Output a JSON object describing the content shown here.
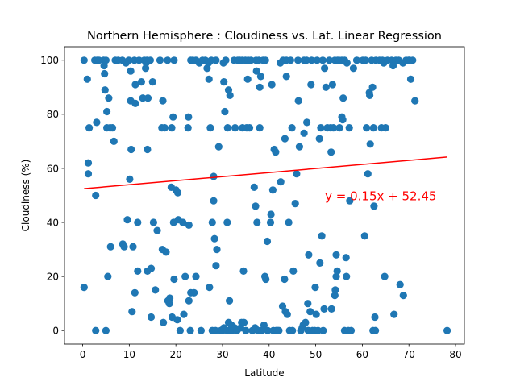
{
  "chart_data": {
    "type": "scatter",
    "title": "Northern Hemisphere : Cloudiness vs. Lat. Linear Regression",
    "xlabel": "Latitude",
    "ylabel": "Cloudiness (%)",
    "xlim": [
      -3.9,
      81.9
    ],
    "ylim": [
      -5,
      105
    ],
    "xticks": [
      0,
      10,
      20,
      30,
      40,
      50,
      60,
      70,
      80
    ],
    "yticks": [
      0,
      20,
      40,
      60,
      80,
      100
    ],
    "grid": false,
    "marker_color": "#1f77b4",
    "regression": {
      "slope": 0.15,
      "intercept": 52.45,
      "x_range": [
        0.3,
        78.2
      ],
      "color": "#ff0000",
      "equation_label": "y = 0.15x + 52.45",
      "label_position": [
        52,
        50
      ]
    },
    "series": [
      {
        "values": [
          [
            0.3,
            100
          ],
          [
            0.3,
            16
          ],
          [
            1,
            93
          ],
          [
            1.2,
            62
          ],
          [
            1.2,
            58
          ],
          [
            1.4,
            75
          ],
          [
            2.6,
            100
          ],
          [
            2.8,
            50
          ],
          [
            3,
            77
          ],
          [
            3.1,
            100
          ],
          [
            2.8,
            0
          ],
          [
            3.5,
            100
          ],
          [
            4.5,
            100
          ],
          [
            4.6,
            98
          ],
          [
            4.7,
            95
          ],
          [
            4.8,
            89
          ],
          [
            5,
            100
          ],
          [
            5,
            0
          ],
          [
            5.2,
            81
          ],
          [
            5.2,
            75
          ],
          [
            5.4,
            20
          ],
          [
            5.6,
            86
          ],
          [
            5.9,
            75
          ],
          [
            6,
            31
          ],
          [
            6.4,
            75
          ],
          [
            6.7,
            70
          ],
          [
            7,
            100
          ],
          [
            7.6,
            100
          ],
          [
            8.5,
            100
          ],
          [
            8.6,
            32
          ],
          [
            8.9,
            31
          ],
          [
            9.3,
            99
          ],
          [
            9.6,
            41
          ],
          [
            9.9,
            100
          ],
          [
            10.1,
            56
          ],
          [
            10.3,
            96
          ],
          [
            10.3,
            85
          ],
          [
            10.4,
            67
          ],
          [
            10.6,
            7
          ],
          [
            10.8,
            31
          ],
          [
            11.1,
            100
          ],
          [
            11.2,
            14
          ],
          [
            11.3,
            91
          ],
          [
            11.3,
            84
          ],
          [
            11.8,
            40
          ],
          [
            11.8,
            22
          ],
          [
            12.1,
            100
          ],
          [
            12.6,
            92
          ],
          [
            12.9,
            86
          ],
          [
            13.2,
            100
          ],
          [
            13.5,
            97
          ],
          [
            13.6,
            99
          ],
          [
            13.8,
            100
          ],
          [
            13.9,
            22
          ],
          [
            13.9,
            67
          ],
          [
            14,
            86
          ],
          [
            14.5,
            100
          ],
          [
            14.7,
            5
          ],
          [
            14.7,
            23
          ],
          [
            15,
            92
          ],
          [
            15.2,
            40
          ],
          [
            15.6,
            15
          ],
          [
            16,
            37
          ],
          [
            16.6,
            100
          ],
          [
            17,
            75
          ],
          [
            17.2,
            85
          ],
          [
            17.1,
            30
          ],
          [
            17.3,
            3
          ],
          [
            17.6,
            75
          ],
          [
            17.9,
            29
          ],
          [
            18.2,
            100
          ],
          [
            18.3,
            11
          ],
          [
            18.6,
            10
          ],
          [
            18.7,
            12
          ],
          [
            19,
            53
          ],
          [
            19.1,
            75
          ],
          [
            19.2,
            5
          ],
          [
            19.4,
            79
          ],
          [
            19.5,
            40
          ],
          [
            19.6,
            19
          ],
          [
            19.6,
            100
          ],
          [
            20,
            52
          ],
          [
            20.3,
            4
          ],
          [
            20.4,
            51
          ],
          [
            20.5,
            41
          ],
          [
            20.9,
            0
          ],
          [
            21.5,
            40
          ],
          [
            21.7,
            6
          ],
          [
            22,
            20
          ],
          [
            22.6,
            75
          ],
          [
            22.7,
            79
          ],
          [
            22.8,
            39
          ],
          [
            22.8,
            11
          ],
          [
            23.1,
            0
          ],
          [
            23.2,
            100
          ],
          [
            23.2,
            14
          ],
          [
            23.6,
            100
          ],
          [
            23.9,
            14
          ],
          [
            24.3,
            100
          ],
          [
            24.3,
            20
          ],
          [
            25,
            99
          ],
          [
            25.4,
            0
          ],
          [
            25.7,
            100
          ],
          [
            26.3,
            100
          ],
          [
            26.7,
            97
          ],
          [
            27,
            99
          ],
          [
            27.1,
            93
          ],
          [
            27.2,
            16
          ],
          [
            27.4,
            75
          ],
          [
            27.6,
            100
          ],
          [
            27.8,
            0
          ],
          [
            27.8,
            40
          ],
          [
            28.1,
            57
          ],
          [
            28.1,
            48
          ],
          [
            28.3,
            34
          ],
          [
            28.5,
            0
          ],
          [
            28.6,
            24
          ],
          [
            28.6,
            100
          ],
          [
            28.8,
            30
          ],
          [
            29.2,
            68
          ],
          [
            29.6,
            0
          ],
          [
            30,
            0
          ],
          [
            30.2,
            99
          ],
          [
            30.3,
            92
          ],
          [
            30.3,
            1
          ],
          [
            30.5,
            81
          ],
          [
            30.7,
            100
          ],
          [
            31,
            40
          ],
          [
            31,
            0
          ],
          [
            31.1,
            75
          ],
          [
            31.3,
            89
          ],
          [
            31.3,
            3
          ],
          [
            31.5,
            11
          ],
          [
            31.6,
            87
          ],
          [
            31.6,
            0
          ],
          [
            31.9,
            2
          ],
          [
            32.1,
            0
          ],
          [
            32.5,
            100
          ],
          [
            32.6,
            1
          ],
          [
            32.7,
            75
          ],
          [
            33.1,
            0
          ],
          [
            33.3,
            100
          ],
          [
            33.7,
            100
          ],
          [
            33.9,
            1
          ],
          [
            34.1,
            3
          ],
          [
            34.2,
            100
          ],
          [
            34.3,
            75
          ],
          [
            34.5,
            22
          ],
          [
            34.6,
            3
          ],
          [
            34.9,
            100
          ],
          [
            35,
            0
          ],
          [
            35.2,
            75
          ],
          [
            35.4,
            93
          ],
          [
            35.5,
            100
          ],
          [
            35.8,
            75
          ],
          [
            36.1,
            100
          ],
          [
            36.4,
            0
          ],
          [
            36.8,
            53
          ],
          [
            37,
            1
          ],
          [
            37.1,
            46
          ],
          [
            37.2,
            100
          ],
          [
            37.3,
            96
          ],
          [
            37.4,
            40
          ],
          [
            37.6,
            0
          ],
          [
            37.8,
            100
          ],
          [
            38,
            90
          ],
          [
            38,
            75
          ],
          [
            38.2,
            94
          ],
          [
            38.4,
            0
          ],
          [
            38.7,
            100
          ],
          [
            38.9,
            2
          ],
          [
            39.1,
            20
          ],
          [
            39.2,
            100
          ],
          [
            39.3,
            19
          ],
          [
            39.6,
            33
          ],
          [
            39.7,
            0
          ],
          [
            40.3,
            40
          ],
          [
            40.4,
            43
          ],
          [
            40.6,
            91
          ],
          [
            40.8,
            52
          ],
          [
            40.9,
            0
          ],
          [
            41.1,
            67
          ],
          [
            41.4,
            66
          ],
          [
            41.5,
            0
          ],
          [
            41.8,
            0
          ],
          [
            42.1,
            0
          ],
          [
            42.4,
            99
          ],
          [
            42.5,
            55
          ],
          [
            42.9,
            9
          ],
          [
            43,
            100
          ],
          [
            43.3,
            19
          ],
          [
            43.4,
            71
          ],
          [
            43.5,
            7
          ],
          [
            43.7,
            100
          ],
          [
            43.7,
            94
          ],
          [
            43.9,
            6
          ],
          [
            44.2,
            40
          ],
          [
            44.4,
            0
          ],
          [
            44.6,
            100
          ],
          [
            44.9,
            75
          ],
          [
            45,
            0
          ],
          [
            45.2,
            22
          ],
          [
            45.6,
            47
          ],
          [
            45.9,
            58
          ],
          [
            46.2,
            100
          ],
          [
            46.3,
            85
          ],
          [
            46.5,
            68
          ],
          [
            46.8,
            0
          ],
          [
            47.1,
            1
          ],
          [
            47.3,
            2
          ],
          [
            47.5,
            73
          ],
          [
            47.5,
            100
          ],
          [
            47.8,
            3
          ],
          [
            48,
            100
          ],
          [
            48.1,
            77
          ],
          [
            48.3,
            10
          ],
          [
            48.4,
            0
          ],
          [
            48.5,
            28
          ],
          [
            48.8,
            7
          ],
          [
            49,
            91
          ],
          [
            49.1,
            100
          ],
          [
            49.3,
            0
          ],
          [
            49.8,
            0
          ],
          [
            49.9,
            16
          ],
          [
            50.1,
            6
          ],
          [
            50.3,
            100
          ],
          [
            50.5,
            0
          ],
          [
            50.8,
            71
          ],
          [
            50.9,
            25
          ],
          [
            51.1,
            75
          ],
          [
            51.3,
            35
          ],
          [
            51.5,
            100
          ],
          [
            51.6,
            0
          ],
          [
            51.8,
            8
          ],
          [
            51.9,
            97
          ],
          [
            52.2,
            90
          ],
          [
            52.5,
            75
          ],
          [
            52.9,
            100
          ],
          [
            53.2,
            75
          ],
          [
            53.3,
            66
          ],
          [
            53.4,
            8
          ],
          [
            53.6,
            91
          ],
          [
            53.8,
            75
          ],
          [
            54.1,
            100
          ],
          [
            54.1,
            13
          ],
          [
            54.2,
            15
          ],
          [
            54.4,
            28
          ],
          [
            54.4,
            20
          ],
          [
            54.6,
            22
          ],
          [
            54.7,
            100
          ],
          [
            55,
            100
          ],
          [
            55.1,
            75
          ],
          [
            55.6,
            100
          ],
          [
            55.6,
            79
          ],
          [
            55.8,
            78
          ],
          [
            55.9,
            86
          ],
          [
            56.2,
            0
          ],
          [
            56.2,
            100
          ],
          [
            56.5,
            27
          ],
          [
            56.6,
            20
          ],
          [
            56.7,
            99
          ],
          [
            57,
            0
          ],
          [
            57.2,
            75
          ],
          [
            57.3,
            48
          ],
          [
            57.6,
            0
          ],
          [
            58.1,
            97
          ],
          [
            58.8,
            100
          ],
          [
            60.1,
            100
          ],
          [
            60.5,
            35
          ],
          [
            60.7,
            100
          ],
          [
            60.9,
            75
          ],
          [
            61.2,
            58
          ],
          [
            61.5,
            88
          ],
          [
            61.6,
            87
          ],
          [
            61.7,
            69
          ],
          [
            62,
            100
          ],
          [
            62.2,
            90
          ],
          [
            62.3,
            0
          ],
          [
            62.4,
            75
          ],
          [
            62.5,
            46
          ],
          [
            62.7,
            5
          ],
          [
            62.8,
            0
          ],
          [
            62.9,
            100
          ],
          [
            63.7,
            100
          ],
          [
            64.1,
            75
          ],
          [
            64.3,
            100
          ],
          [
            64.6,
            99
          ],
          [
            64.8,
            20
          ],
          [
            65,
            75
          ],
          [
            65.4,
            100
          ],
          [
            66.3,
            100
          ],
          [
            66.6,
            98
          ],
          [
            66.8,
            6
          ],
          [
            67.2,
            100
          ],
          [
            67.8,
            100
          ],
          [
            68.1,
            17
          ],
          [
            68.7,
            99
          ],
          [
            68.8,
            13
          ],
          [
            69.4,
            100
          ],
          [
            69.9,
            100
          ],
          [
            70.1,
            100
          ],
          [
            70.4,
            93
          ],
          [
            70.8,
            100
          ],
          [
            71.3,
            85
          ],
          [
            78.2,
            0
          ]
        ]
      }
    ]
  }
}
